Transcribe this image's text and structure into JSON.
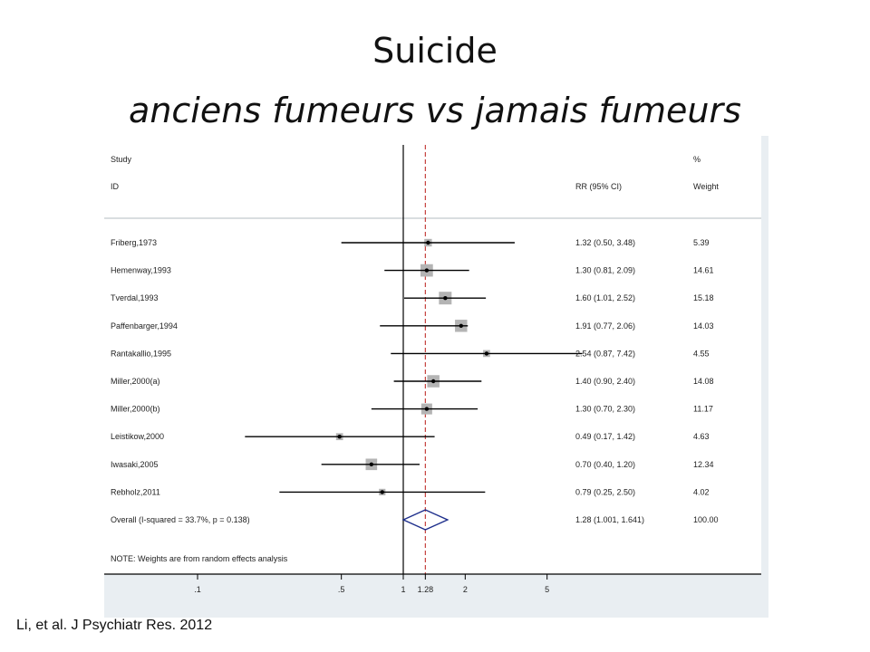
{
  "slide": {
    "title": "Suicide",
    "subtitle": "anciens fumeurs vs jamais fumeurs",
    "citation": "Li, et al. J Psychiatr Res. 2012"
  },
  "chart_data": {
    "type": "forest",
    "columns": {
      "study_header_1": "Study",
      "study_header_2": "ID",
      "rr_header": "RR (95% CI)",
      "weight_header_1": "%",
      "weight_header_2": "Weight"
    },
    "studies": [
      {
        "id": "Friberg,1973",
        "rr": 1.32,
        "lo": 0.5,
        "hi": 3.48,
        "rr_text": "1.32 (0.50, 3.48)",
        "weight": 5.39,
        "weight_text": "5.39"
      },
      {
        "id": "Hemenway,1993",
        "rr": 1.3,
        "lo": 0.81,
        "hi": 2.09,
        "rr_text": "1.30 (0.81, 2.09)",
        "weight": 14.61,
        "weight_text": "14.61"
      },
      {
        "id": "Tverdal,1993",
        "rr": 1.6,
        "lo": 1.01,
        "hi": 2.52,
        "rr_text": "1.60 (1.01, 2.52)",
        "weight": 15.18,
        "weight_text": "15.18"
      },
      {
        "id": "Paffenbarger,1994",
        "rr": 1.91,
        "lo": 0.77,
        "hi": 2.06,
        "rr_text": "1.91 (0.77, 2.06)",
        "weight": 14.03,
        "weight_text": "14.03"
      },
      {
        "id": "Rantakallio,1995",
        "rr": 2.54,
        "lo": 0.87,
        "hi": 7.42,
        "rr_text": "2.54 (0.87, 7.42)",
        "weight": 4.55,
        "weight_text": "4.55"
      },
      {
        "id": "Miller,2000(a)",
        "rr": 1.4,
        "lo": 0.9,
        "hi": 2.4,
        "rr_text": "1.40 (0.90, 2.40)",
        "weight": 14.08,
        "weight_text": "14.08"
      },
      {
        "id": "Miller,2000(b)",
        "rr": 1.3,
        "lo": 0.7,
        "hi": 2.3,
        "rr_text": "1.30 (0.70, 2.30)",
        "weight": 11.17,
        "weight_text": "11.17"
      },
      {
        "id": "Leistikow,2000",
        "rr": 0.49,
        "lo": 0.17,
        "hi": 1.42,
        "rr_text": "0.49 (0.17, 1.42)",
        "weight": 4.63,
        "weight_text": "4.63"
      },
      {
        "id": "Iwasaki,2005",
        "rr": 0.7,
        "lo": 0.4,
        "hi": 1.2,
        "rr_text": "0.70 (0.40, 1.20)",
        "weight": 12.34,
        "weight_text": "12.34"
      },
      {
        "id": "Rebholz,2011",
        "rr": 0.79,
        "lo": 0.25,
        "hi": 2.5,
        "rr_text": "0.79 (0.25, 2.50)",
        "weight": 4.02,
        "weight_text": "4.02"
      }
    ],
    "overall": {
      "label": "Overall  (I-squared = 33.7%, p = 0.138)",
      "rr": 1.28,
      "lo": 1.001,
      "hi": 1.641,
      "rr_text": "1.28 (1.001, 1.641)",
      "weight_text": "100.00"
    },
    "note": "NOTE: Weights are from random effects analysis",
    "x_ticks": [
      {
        "value": 0.1,
        "label": ".1"
      },
      {
        "value": 0.5,
        "label": ".5"
      },
      {
        "value": 1,
        "label": "1"
      },
      {
        "value": 1.28,
        "label": "1.28"
      },
      {
        "value": 2,
        "label": "2"
      },
      {
        "value": 5,
        "label": "5"
      }
    ],
    "x_scale": "log",
    "reference_line": 1,
    "pooled_line": 1.28,
    "colors": {
      "panel_background": "#e9eef2",
      "plot_background": "#ffffff",
      "ci_line": "#000000",
      "weight_box": "#b4b4b4",
      "overall_diamond": "#1e2f8c",
      "pooled_line": "#c0302c"
    }
  }
}
